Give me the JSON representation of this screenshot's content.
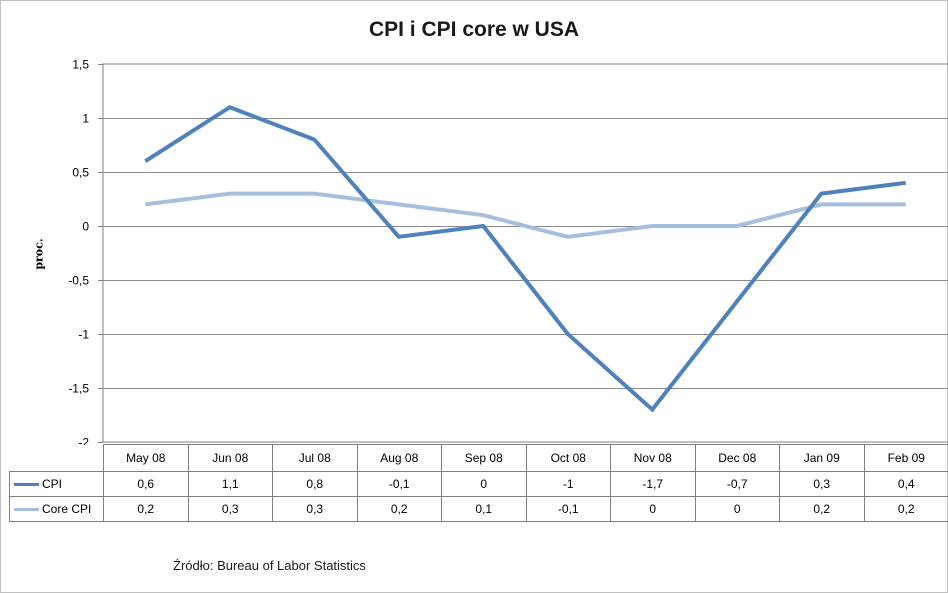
{
  "chart_data": {
    "type": "line",
    "title": "CPI i CPI core w USA",
    "ylabel": "proc.",
    "ylim": [
      -2,
      1.5
    ],
    "yticks": [
      "1,5",
      "1",
      "0,5",
      "0",
      "-0,5",
      "-1",
      "-1,5",
      "-2"
    ],
    "yticks_values": [
      1.5,
      1,
      0.5,
      0,
      -0.5,
      -1,
      -1.5,
      -2
    ],
    "categories": [
      "May 08",
      "Jun 08",
      "Jul 08",
      "Aug 08",
      "Sep 08",
      "Oct 08",
      "Nov 08",
      "Dec 08",
      "Jan 09",
      "Feb 09"
    ],
    "series": [
      {
        "name": "CPI",
        "color": "#4f81bd",
        "values": [
          0.6,
          1.1,
          0.8,
          -0.1,
          0,
          -1,
          -1.7,
          -0.7,
          0.3,
          0.4
        ],
        "labels": [
          "0,6",
          "1,1",
          "0,8",
          "-0,1",
          "0",
          "-1",
          "-1,7",
          "-0,7",
          "0,3",
          "0,4"
        ]
      },
      {
        "name": "Core CPI",
        "color": "#a7bfde",
        "values": [
          0.2,
          0.3,
          0.3,
          0.2,
          0.1,
          -0.1,
          0,
          0,
          0.2,
          0.2
        ],
        "labels": [
          "0,2",
          "0,3",
          "0,3",
          "0,2",
          "0,1",
          "-0,1",
          "0",
          "0",
          "0,2",
          "0,2"
        ]
      }
    ],
    "grid": true,
    "legend": "data-table"
  },
  "source": "Źródło:  Bureau of Labor Statistics"
}
